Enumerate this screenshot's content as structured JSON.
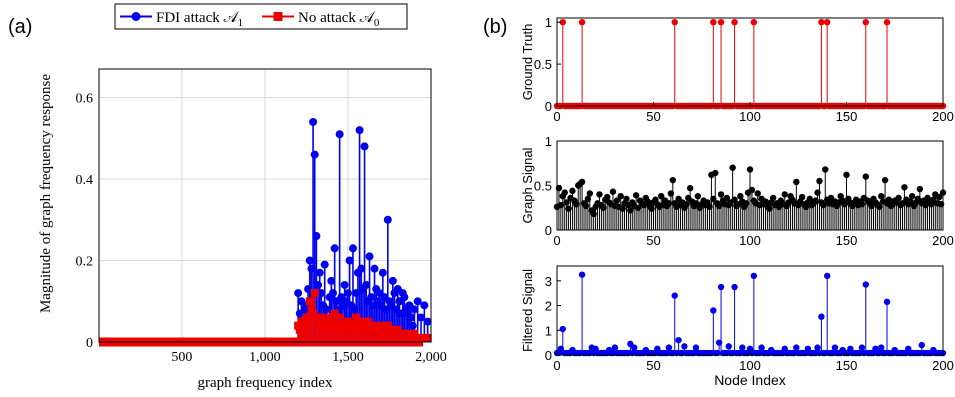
{
  "panel_a_label": "(a)",
  "panel_b_label": "(b)",
  "colors": {
    "blue": "#0000ee",
    "red": "#ee0000",
    "black": "#000000",
    "grid": "#d9d9d9"
  },
  "chart_data": [
    {
      "type": "stem",
      "panel": "(a)",
      "xlabel": "graph frequency index",
      "ylabel": "Magnitude of graph frequency response",
      "xlim": [
        1,
        2000
      ],
      "ylim": [
        0,
        0.67
      ],
      "xticks": [
        500,
        1000,
        1500,
        2000
      ],
      "xtick_labels": [
        "500",
        "1,000",
        "1,500",
        "2,000"
      ],
      "yticks": [
        0,
        0.2,
        0.4,
        0.6
      ],
      "ytick_labels": [
        "0",
        "0.2",
        "0.4",
        "0.6"
      ],
      "grid": true,
      "legend_position": "top-center",
      "series": [
        {
          "name": "FDI attack 𝒜",
          "name_sub": "1",
          "color": "#0000ee",
          "marker": "circle",
          "x": [
            1200,
            1210,
            1220,
            1230,
            1240,
            1250,
            1260,
            1270,
            1280,
            1290,
            1300,
            1310,
            1320,
            1330,
            1340,
            1350,
            1360,
            1370,
            1380,
            1390,
            1400,
            1410,
            1420,
            1430,
            1440,
            1450,
            1460,
            1470,
            1480,
            1490,
            1500,
            1510,
            1520,
            1530,
            1540,
            1550,
            1560,
            1570,
            1580,
            1590,
            1600,
            1610,
            1620,
            1630,
            1640,
            1650,
            1660,
            1670,
            1680,
            1690,
            1700,
            1710,
            1720,
            1730,
            1740,
            1750,
            1760,
            1770,
            1780,
            1790,
            1800,
            1810,
            1820,
            1830,
            1840,
            1850,
            1860,
            1870,
            1880,
            1890,
            1900,
            1920,
            1940,
            1960,
            1980
          ],
          "y": [
            0.12,
            0.07,
            0.1,
            0.05,
            0.08,
            0.09,
            0.13,
            0.2,
            0.18,
            0.54,
            0.46,
            0.26,
            0.14,
            0.17,
            0.12,
            0.09,
            0.19,
            0.08,
            0.06,
            0.11,
            0.15,
            0.12,
            0.23,
            0.1,
            0.08,
            0.51,
            0.11,
            0.09,
            0.14,
            0.1,
            0.12,
            0.2,
            0.09,
            0.23,
            0.08,
            0.12,
            0.17,
            0.52,
            0.18,
            0.13,
            0.48,
            0.14,
            0.1,
            0.21,
            0.11,
            0.09,
            0.18,
            0.13,
            0.1,
            0.12,
            0.09,
            0.17,
            0.11,
            0.08,
            0.3,
            0.1,
            0.09,
            0.15,
            0.12,
            0.08,
            0.13,
            0.1,
            0.07,
            0.12,
            0.11,
            0.08,
            0.07,
            0.09,
            0.06,
            0.04,
            0.08,
            0.1,
            0.06,
            0.09,
            0.05
          ]
        },
        {
          "name": "No attack 𝒜",
          "name_sub": "0",
          "color": "#ee0000",
          "marker": "square",
          "x": [
            1200,
            1210,
            1220,
            1230,
            1240,
            1250,
            1260,
            1270,
            1280,
            1290,
            1300,
            1310,
            1320,
            1330,
            1340,
            1350,
            1360,
            1370,
            1380,
            1390,
            1400,
            1410,
            1420,
            1430,
            1440,
            1450,
            1460,
            1470,
            1480,
            1490,
            1500,
            1510,
            1520,
            1530,
            1540,
            1550,
            1560,
            1570,
            1580,
            1590,
            1600,
            1610,
            1620,
            1630,
            1640,
            1650,
            1660,
            1670,
            1680,
            1690,
            1700,
            1710,
            1720,
            1730,
            1740,
            1750,
            1760,
            1770,
            1780,
            1790,
            1800,
            1810,
            1820,
            1830,
            1840,
            1850,
            1860,
            1870,
            1880,
            1890,
            1900,
            1920,
            1940,
            1960,
            1980
          ],
          "y": [
            0.04,
            0.03,
            0.05,
            0.02,
            0.04,
            0.06,
            0.05,
            0.1,
            0.08,
            0.07,
            0.12,
            0.06,
            0.05,
            0.04,
            0.06,
            0.03,
            0.05,
            0.04,
            0.03,
            0.06,
            0.05,
            0.04,
            0.07,
            0.03,
            0.04,
            0.06,
            0.05,
            0.03,
            0.04,
            0.03,
            0.05,
            0.04,
            0.03,
            0.05,
            0.04,
            0.06,
            0.03,
            0.04,
            0.05,
            0.03,
            0.04,
            0.03,
            0.05,
            0.04,
            0.03,
            0.02,
            0.04,
            0.03,
            0.02,
            0.03,
            0.04,
            0.02,
            0.03,
            0.02,
            0.04,
            0.03,
            0.02,
            0.03,
            0.02,
            0.02,
            0.03,
            0.02,
            0.01,
            0.02,
            0.02,
            0.01,
            0.02,
            0.01,
            0.01,
            0.01,
            0.02,
            0.01,
            0.01,
            0.01,
            0.01
          ]
        }
      ]
    },
    {
      "type": "stem",
      "panel": "(b)",
      "ylabel": "Ground Truth",
      "color": "#ee0000",
      "xlim": [
        0,
        200
      ],
      "ylim": [
        0,
        1.05
      ],
      "xticks": [
        0,
        50,
        100,
        150,
        200
      ],
      "yticks": [
        0,
        0.5,
        1
      ],
      "ytick_labels": [
        "0",
        "0.5",
        "1"
      ],
      "n_points": 201,
      "spikes_x": [
        3,
        13,
        61,
        81,
        85,
        92,
        102,
        137,
        140,
        160,
        171
      ],
      "spikes_y": 1,
      "baseline_y": 0
    },
    {
      "type": "stem",
      "panel": "(b)",
      "ylabel": "Graph Signal",
      "color": "#000000",
      "xlim": [
        0,
        200
      ],
      "ylim": [
        0,
        1.0
      ],
      "xticks": [
        0,
        50,
        100,
        150,
        200
      ],
      "yticks": [
        0,
        0.5,
        1
      ],
      "ytick_labels": [
        "0",
        "0.5",
        "1"
      ],
      "y": [
        0.26,
        0.47,
        0.28,
        0.38,
        0.42,
        0.31,
        0.24,
        0.36,
        0.44,
        0.33,
        0.29,
        0.5,
        0.52,
        0.54,
        0.3,
        0.27,
        0.35,
        0.41,
        0.22,
        0.18,
        0.26,
        0.3,
        0.4,
        0.28,
        0.25,
        0.34,
        0.37,
        0.31,
        0.29,
        0.43,
        0.27,
        0.33,
        0.26,
        0.38,
        0.24,
        0.3,
        0.35,
        0.28,
        0.22,
        0.31,
        0.27,
        0.39,
        0.25,
        0.33,
        0.3,
        0.28,
        0.36,
        0.32,
        0.27,
        0.24,
        0.31,
        0.34,
        0.29,
        0.26,
        0.38,
        0.28,
        0.33,
        0.27,
        0.3,
        0.41,
        0.56,
        0.3,
        0.26,
        0.35,
        0.28,
        0.31,
        0.25,
        0.29,
        0.36,
        0.47,
        0.32,
        0.27,
        0.3,
        0.38,
        0.25,
        0.29,
        0.33,
        0.28,
        0.31,
        0.26,
        0.62,
        0.35,
        0.64,
        0.3,
        0.27,
        0.4,
        0.33,
        0.29,
        0.36,
        0.28,
        0.31,
        0.7,
        0.34,
        0.27,
        0.29,
        0.38,
        0.32,
        0.26,
        0.3,
        0.42,
        0.68,
        0.45,
        0.33,
        0.3,
        0.41,
        0.28,
        0.35,
        0.29,
        0.32,
        0.27,
        0.24,
        0.31,
        0.36,
        0.28,
        0.3,
        0.26,
        0.33,
        0.29,
        0.4,
        0.27,
        0.31,
        0.38,
        0.34,
        0.3,
        0.54,
        0.28,
        0.32,
        0.37,
        0.29,
        0.26,
        0.31,
        0.35,
        0.28,
        0.3,
        0.33,
        0.42,
        0.55,
        0.31,
        0.28,
        0.68,
        0.34,
        0.3,
        0.36,
        0.29,
        0.32,
        0.27,
        0.31,
        0.38,
        0.33,
        0.29,
        0.62,
        0.35,
        0.3,
        0.27,
        0.31,
        0.34,
        0.28,
        0.32,
        0.29,
        0.36,
        0.6,
        0.33,
        0.3,
        0.27,
        0.35,
        0.31,
        0.29,
        0.26,
        0.38,
        0.32,
        0.56,
        0.3,
        0.34,
        0.27,
        0.29,
        0.33,
        0.31,
        0.36,
        0.28,
        0.3,
        0.48,
        0.34,
        0.29,
        0.32,
        0.38,
        0.27,
        0.31,
        0.35,
        0.46,
        0.3,
        0.33,
        0.28,
        0.36,
        0.31,
        0.29,
        0.34,
        0.4,
        0.3,
        0.37,
        0.29,
        0.42
      ]
    },
    {
      "type": "stem",
      "panel": "(b)",
      "ylabel": "Filtered Signal",
      "xlabel": "Node Index",
      "color": "#0000ee",
      "xlim": [
        0,
        200
      ],
      "ylim": [
        0,
        3.6
      ],
      "xticks": [
        0,
        50,
        100,
        150,
        200
      ],
      "yticks": [
        0,
        1,
        2,
        3
      ],
      "ytick_labels": [
        "0",
        "1",
        "2",
        "3"
      ],
      "n_points": 201,
      "spikes_x": [
        3,
        13,
        61,
        63,
        81,
        85,
        92,
        102,
        137,
        140,
        160,
        171
      ],
      "spikes_y": [
        1.05,
        3.25,
        2.4,
        0.6,
        1.8,
        2.75,
        2.75,
        3.2,
        1.55,
        3.2,
        2.85,
        2.15
      ],
      "bumps_x": [
        2,
        8,
        18,
        20,
        27,
        30,
        38,
        40,
        46,
        52,
        58,
        66,
        72,
        84,
        89,
        96,
        100,
        106,
        111,
        118,
        124,
        130,
        135,
        144,
        148,
        152,
        158,
        165,
        168,
        175,
        182,
        189,
        195
      ],
      "bumps_y": [
        0.25,
        0.2,
        0.3,
        0.25,
        0.2,
        0.3,
        0.45,
        0.3,
        0.2,
        0.25,
        0.3,
        0.35,
        0.3,
        0.5,
        0.35,
        0.3,
        0.25,
        0.3,
        0.2,
        0.25,
        0.3,
        0.25,
        0.3,
        0.3,
        0.2,
        0.25,
        0.3,
        0.25,
        0.3,
        0.2,
        0.25,
        0.4,
        0.2
      ]
    }
  ]
}
